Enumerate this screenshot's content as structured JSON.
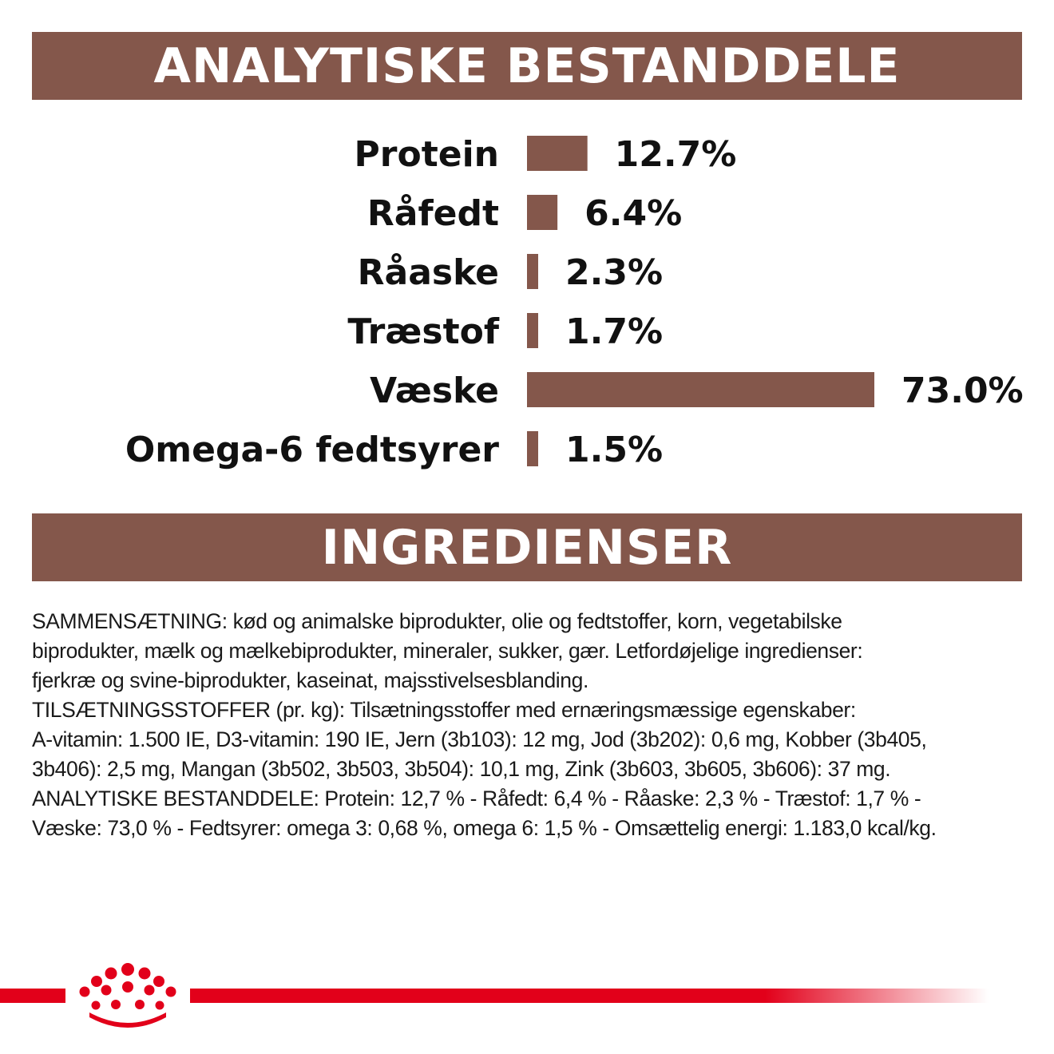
{
  "analytics_heading": "ANALYTISKE BESTANDDELE",
  "ingredients_heading": "INGREDIENSER",
  "chart_data": {
    "type": "bar",
    "orientation": "horizontal",
    "categories": [
      "Protein",
      "Råfedt",
      "Råaske",
      "Træstof",
      "Væske",
      "Omega-6 fedtsyrer"
    ],
    "values": [
      12.7,
      6.4,
      2.3,
      1.7,
      73.0,
      1.5
    ],
    "value_labels": [
      "12.7%",
      "6.4%",
      "2.3%",
      "1.7%",
      "73.0%",
      "1.5%"
    ],
    "xlim": [
      0,
      73.0
    ],
    "grid": false,
    "bar_color": "#84574b"
  },
  "ingredients_lines": [
    "SAMMENSÆTNING: kød og animalske biprodukter, olie og fedtstoffer, korn, vegetabilske",
    "biprodukter, mælk og mælkebiprodukter, mineraler, sukker, gær. Letfordøjelige ingredienser:",
    "fjerkræ og svine-biprodukter, kaseinat, majsstivelsesblanding.",
    "TILSÆTNINGSSTOFFER (pr. kg): Tilsætningsstoffer med ernæringsmæssige egenskaber:",
    "A-vitamin: 1.500 IE, D3-vitamin: 190 IE, Jern (3b103): 12 mg, Jod (3b202): 0,6 mg, Kobber (3b405,",
    "3b406): 2,5 mg, Mangan (3b502, 3b503, 3b504): 10,1 mg, Zink (3b603, 3b605, 3b606): 37 mg.",
    "ANALYTISKE BESTANDDELE: Protein: 12,7 % - Råfedt: 6,4 % - Råaske: 2,3 % - Træstof: 1,7 % -",
    "Væske: 73,0 % - Fedtsyrer: omega 3: 0,68 %, omega 6: 1,5 % - Omsættelig energi: 1.183,0 kcal/kg."
  ],
  "colors": {
    "brown": "#84574b",
    "brand_red": "#e2001a"
  },
  "logo_icon": "crown-icon"
}
